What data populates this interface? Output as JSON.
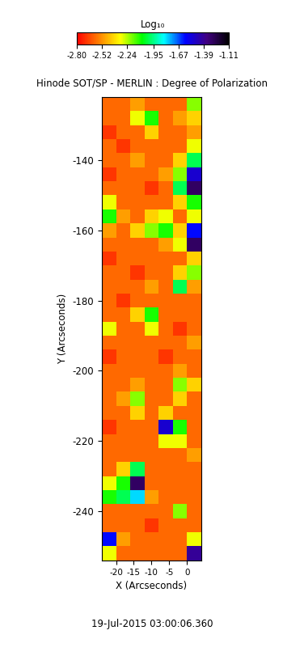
{
  "chart_data": {
    "type": "heatmap",
    "title": "Hinode SOT/SP - MERLIN : Degree of Polarization",
    "x_label": "X (Arcseconds)",
    "y_label": "Y (Arcseconds)",
    "timestamp": "19-Jul-2015 03:00:06.360",
    "x": [
      -22,
      -18,
      -14,
      -10,
      -6,
      -2,
      2
    ],
    "y": [
      -124,
      -128,
      -132,
      -136,
      -140,
      -144,
      -148,
      -152,
      -156,
      -160,
      -164,
      -168,
      -172,
      -176,
      -180,
      -184,
      -188,
      -192,
      -196,
      -200,
      -204,
      -208,
      -212,
      -216,
      -220,
      -224,
      -228,
      -232,
      -236,
      -240,
      -244,
      -248,
      -252
    ],
    "cells": [
      [
        -2.6,
        -2.6,
        -2.5,
        -2.6,
        -2.6,
        -2.6,
        -2.2
      ],
      [
        -2.6,
        -2.6,
        -2.3,
        -2.1,
        -2.6,
        -2.5,
        -2.4
      ],
      [
        -2.7,
        -2.6,
        -2.6,
        -2.4,
        -2.6,
        -2.6,
        -2.5
      ],
      [
        -2.6,
        -2.7,
        -2.6,
        -2.6,
        -2.6,
        -2.6,
        -2.3
      ],
      [
        -2.6,
        -2.6,
        -2.5,
        -2.6,
        -2.6,
        -2.4,
        -2.0
      ],
      [
        -2.7,
        -2.6,
        -2.6,
        -2.6,
        -2.5,
        -2.2,
        -1.5
      ],
      [
        -2.6,
        -2.6,
        -2.6,
        -2.7,
        -2.6,
        -2.0,
        -1.3
      ],
      [
        -2.3,
        -2.6,
        -2.6,
        -2.6,
        -2.6,
        -2.4,
        -2.1
      ],
      [
        -2.1,
        -2.5,
        -2.6,
        -2.4,
        -2.3,
        -2.6,
        -2.3
      ],
      [
        -2.5,
        -2.6,
        -2.4,
        -2.2,
        -2.1,
        -2.4,
        -1.6
      ],
      [
        -2.6,
        -2.6,
        -2.6,
        -2.6,
        -2.5,
        -2.3,
        -1.3
      ],
      [
        -2.7,
        -2.6,
        -2.6,
        -2.6,
        -2.6,
        -2.6,
        -2.4
      ],
      [
        -2.6,
        -2.6,
        -2.7,
        -2.6,
        -2.6,
        -2.4,
        -2.2
      ],
      [
        -2.6,
        -2.6,
        -2.6,
        -2.5,
        -2.6,
        -2.0,
        -2.5
      ],
      [
        -2.6,
        -2.7,
        -2.6,
        -2.6,
        -2.6,
        -2.6,
        -2.6
      ],
      [
        -2.6,
        -2.6,
        -2.4,
        -2.1,
        -2.6,
        -2.6,
        -2.6
      ],
      [
        -2.3,
        -2.6,
        -2.6,
        -2.3,
        -2.6,
        -2.7,
        -2.6
      ],
      [
        -2.6,
        -2.6,
        -2.6,
        -2.6,
        -2.6,
        -2.6,
        -2.5
      ],
      [
        -2.7,
        -2.6,
        -2.6,
        -2.6,
        -2.7,
        -2.6,
        -2.6
      ],
      [
        -2.6,
        -2.6,
        -2.6,
        -2.6,
        -2.6,
        -2.5,
        -2.6
      ],
      [
        -2.6,
        -2.6,
        -2.5,
        -2.6,
        -2.6,
        -2.2,
        -2.4
      ],
      [
        -2.6,
        -2.5,
        -2.2,
        -2.6,
        -2.6,
        -2.4,
        -2.6
      ],
      [
        -2.6,
        -2.6,
        -2.4,
        -2.6,
        -2.4,
        -2.6,
        -2.6
      ],
      [
        -2.7,
        -2.6,
        -2.6,
        -2.6,
        -1.5,
        -2.1,
        -2.6
      ],
      [
        -2.6,
        -2.6,
        -2.6,
        -2.6,
        -2.3,
        -2.3,
        -2.6
      ],
      [
        -2.6,
        -2.6,
        -2.6,
        -2.6,
        -2.6,
        -2.6,
        -2.5
      ],
      [
        -2.6,
        -2.4,
        -2.0,
        -2.6,
        -2.6,
        -2.6,
        -2.6
      ],
      [
        -2.3,
        -2.1,
        -1.3,
        -2.6,
        -2.6,
        -2.6,
        -2.6
      ],
      [
        -2.1,
        -2.0,
        -1.8,
        -2.5,
        -2.6,
        -2.6,
        -2.6
      ],
      [
        -2.6,
        -2.6,
        -2.6,
        -2.6,
        -2.6,
        -2.2,
        -2.6
      ],
      [
        -2.6,
        -2.6,
        -2.6,
        -2.7,
        -2.6,
        -2.6,
        -2.6
      ],
      [
        -1.6,
        -2.5,
        -2.6,
        -2.6,
        -2.6,
        -2.6,
        -2.3
      ],
      [
        -2.3,
        -2.6,
        -2.6,
        -2.6,
        -2.6,
        -2.6,
        -1.4
      ]
    ],
    "xlim": [
      -24,
      4
    ],
    "ylim": [
      -254,
      -122
    ],
    "xticks": [
      -20,
      -15,
      -10,
      -5,
      0
    ],
    "yticks": [
      -140,
      -160,
      -180,
      -200,
      -220,
      -240
    ],
    "colorbar": {
      "label": "Log₁₀",
      "range": [
        -2.8,
        -1.11
      ],
      "ticks": [
        {
          "value": -2.8,
          "label": "-2.80"
        },
        -2.52,
        -2.24,
        -1.95,
        -1.67,
        -1.39,
        -1.11
      ]
    }
  }
}
